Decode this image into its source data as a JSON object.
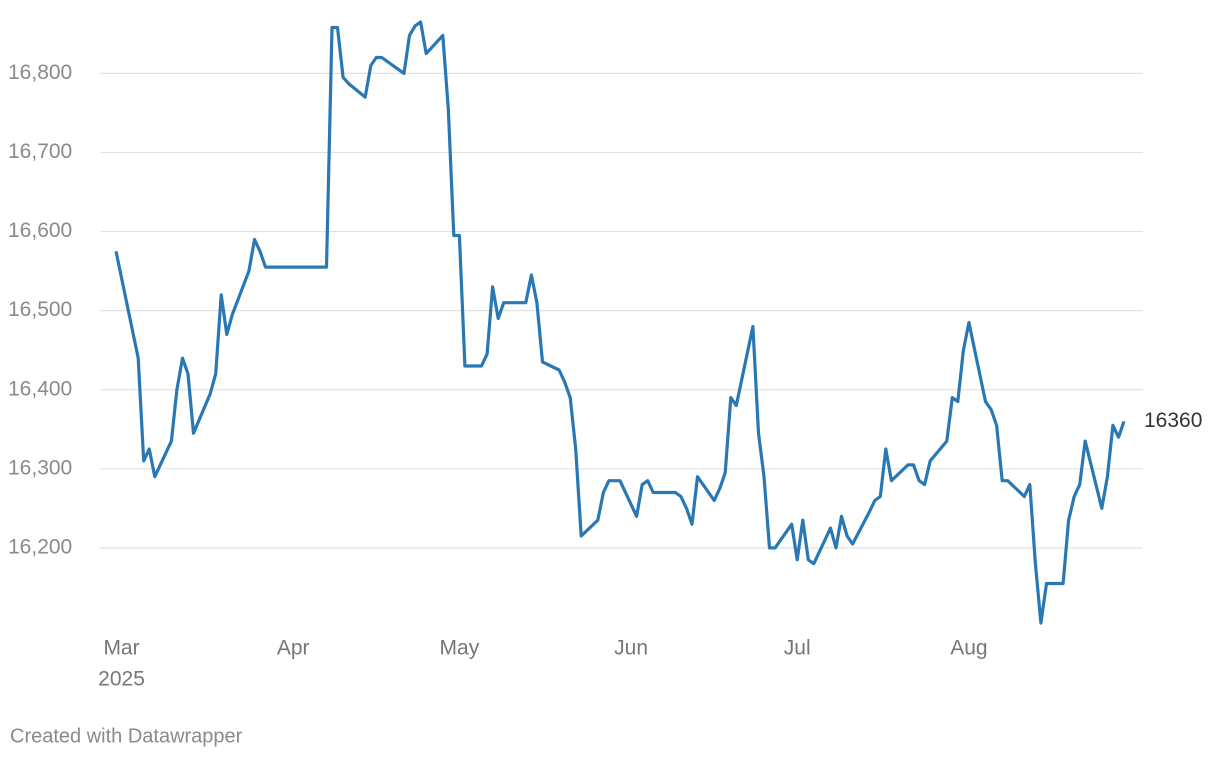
{
  "chart_data": {
    "type": "line",
    "x": [
      "2025-02-28",
      "2025-03-04",
      "2025-03-05",
      "2025-03-06",
      "2025-03-07",
      "2025-03-10",
      "2025-03-11",
      "2025-03-12",
      "2025-03-13",
      "2025-03-14",
      "2025-03-17",
      "2025-03-18",
      "2025-03-19",
      "2025-03-20",
      "2025-03-21",
      "2025-03-24",
      "2025-03-25",
      "2025-03-26",
      "2025-03-27",
      "2025-03-28",
      "2025-03-31",
      "2025-04-01",
      "2025-04-02",
      "2025-04-03",
      "2025-04-04",
      "2025-04-07",
      "2025-04-08",
      "2025-04-09",
      "2025-04-10",
      "2025-04-11",
      "2025-04-14",
      "2025-04-15",
      "2025-04-16",
      "2025-04-17",
      "2025-04-21",
      "2025-04-22",
      "2025-04-23",
      "2025-04-24",
      "2025-04-25",
      "2025-04-28",
      "2025-04-29",
      "2025-04-30",
      "2025-05-01",
      "2025-05-02",
      "2025-05-05",
      "2025-05-06",
      "2025-05-07",
      "2025-05-08",
      "2025-05-09",
      "2025-05-12",
      "2025-05-13",
      "2025-05-14",
      "2025-05-15",
      "2025-05-16",
      "2025-05-19",
      "2025-05-20",
      "2025-05-21",
      "2025-05-22",
      "2025-05-23",
      "2025-05-26",
      "2025-05-27",
      "2025-05-28",
      "2025-05-30",
      "2025-06-02",
      "2025-06-03",
      "2025-06-04",
      "2025-06-05",
      "2025-06-09",
      "2025-06-10",
      "2025-06-11",
      "2025-06-12",
      "2025-06-13",
      "2025-06-16",
      "2025-06-17",
      "2025-06-18",
      "2025-06-19",
      "2025-06-20",
      "2025-06-23",
      "2025-06-24",
      "2025-06-25",
      "2025-06-26",
      "2025-06-27",
      "2025-06-30",
      "2025-07-01",
      "2025-07-02",
      "2025-07-03",
      "2025-07-04",
      "2025-07-07",
      "2025-07-08",
      "2025-07-09",
      "2025-07-10",
      "2025-07-11",
      "2025-07-14",
      "2025-07-15",
      "2025-07-16",
      "2025-07-17",
      "2025-07-18",
      "2025-07-21",
      "2025-07-22",
      "2025-07-23",
      "2025-07-24",
      "2025-07-25",
      "2025-07-28",
      "2025-07-29",
      "2025-07-30",
      "2025-07-31",
      "2025-08-01",
      "2025-08-04",
      "2025-08-05",
      "2025-08-06",
      "2025-08-07",
      "2025-08-08",
      "2025-08-11",
      "2025-08-12",
      "2025-08-13",
      "2025-08-14",
      "2025-08-15",
      "2025-08-18",
      "2025-08-19",
      "2025-08-20",
      "2025-08-21",
      "2025-08-22",
      "2025-08-25",
      "2025-08-26",
      "2025-08-27",
      "2025-08-28",
      "2025-08-29"
    ],
    "values": [
      16575,
      16440,
      16310,
      16325,
      16290,
      16335,
      16400,
      16440,
      16420,
      16345,
      16395,
      16420,
      16520,
      16470,
      16495,
      16550,
      16590,
      16575,
      16555,
      16555,
      16555,
      16555,
      16555,
      16555,
      16555,
      16555,
      16858,
      16858,
      16795,
      16787,
      16770,
      16810,
      16820,
      16820,
      16800,
      16848,
      16860,
      16865,
      16825,
      16848,
      16755,
      16595,
      16595,
      16430,
      16430,
      16445,
      16530,
      16490,
      16510,
      16510,
      16510,
      16545,
      16510,
      16435,
      16425,
      16410,
      16390,
      16325,
      16215,
      16235,
      16270,
      16285,
      16285,
      16240,
      16280,
      16285,
      16270,
      16270,
      16265,
      16250,
      16230,
      16290,
      16260,
      16275,
      16295,
      16390,
      16380,
      16480,
      16345,
      16290,
      16200,
      16200,
      16230,
      16185,
      16235,
      16185,
      16180,
      16225,
      16200,
      16240,
      16215,
      16205,
      16245,
      16260,
      16265,
      16325,
      16285,
      16305,
      16305,
      16285,
      16280,
      16310,
      16335,
      16390,
      16385,
      16450,
      16485,
      16385,
      16375,
      16355,
      16285,
      16285,
      16265,
      16280,
      16180,
      16105,
      16155,
      16155,
      16235,
      16265,
      16280,
      16335,
      16250,
      16290,
      16355,
      16340,
      16360
    ],
    "color": "#2a78b3",
    "end_label": "16360",
    "xlim": [
      "2025-02-28",
      "2025-08-29"
    ],
    "xticks": [
      {
        "value": "2025-03-01",
        "label": "Mar",
        "sublabel": "2025"
      },
      {
        "value": "2025-04-01",
        "label": "Apr"
      },
      {
        "value": "2025-05-01",
        "label": "May"
      },
      {
        "value": "2025-06-01",
        "label": "Jun"
      },
      {
        "value": "2025-07-01",
        "label": "Jul"
      },
      {
        "value": "2025-08-01",
        "label": "Aug"
      }
    ],
    "ylim": [
      16100,
      16870
    ],
    "yticks": [
      {
        "value": 16200,
        "label": "16,200"
      },
      {
        "value": 16300,
        "label": "16,300"
      },
      {
        "value": 16400,
        "label": "16,400"
      },
      {
        "value": 16500,
        "label": "16,500"
      },
      {
        "value": 16600,
        "label": "16,600"
      },
      {
        "value": 16700,
        "label": "16,700"
      },
      {
        "value": 16800,
        "label": "16,800"
      }
    ],
    "grid": true,
    "footer": "Created with Datawrapper"
  }
}
